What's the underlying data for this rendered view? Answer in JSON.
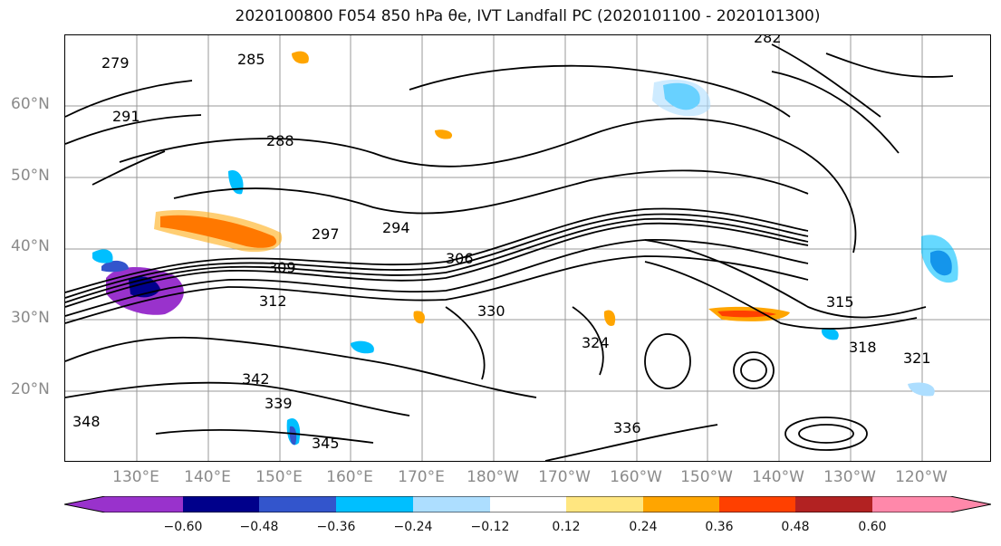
{
  "title": "2020100800 F054 850 hPa θe, IVT Landfall PC (2020101100 - 2020101300)",
  "axes": {
    "lat_labels": [
      "60°N",
      "50°N",
      "40°N",
      "30°N",
      "20°N"
    ],
    "lon_labels": [
      "130°E",
      "140°E",
      "150°E",
      "160°E",
      "170°E",
      "180°W",
      "170°W",
      "160°W",
      "150°W",
      "140°W",
      "130°W",
      "120°W"
    ]
  },
  "contour_labels": [
    "279",
    "282",
    "285",
    "288",
    "291",
    "294",
    "297",
    "306",
    "309",
    "312",
    "315",
    "318",
    "321",
    "324",
    "330",
    "336",
    "339",
    "342",
    "345",
    "348"
  ],
  "colorbar": {
    "colors": [
      "#9932CC",
      "#00008B",
      "#3355CC",
      "#00BFFF",
      "#ADDEFF",
      "#FFFFFF",
      "#FFE680",
      "#FFA500",
      "#FF4000",
      "#B22222",
      "#FF88AA"
    ],
    "tick_labels": [
      "−0.60",
      "−0.48",
      "−0.36",
      "−0.24",
      "−0.12",
      "0.12",
      "0.24",
      "0.36",
      "0.48",
      "0.60"
    ]
  },
  "colors": {
    "contour": "#000000",
    "grid": "#999999",
    "tick_label": "#8a8a8a"
  }
}
